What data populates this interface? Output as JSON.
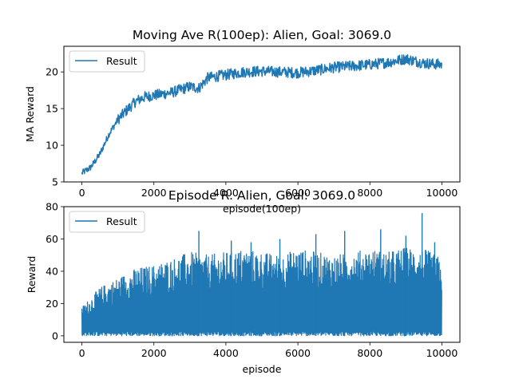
{
  "colors": {
    "series": "#1f77b4"
  },
  "chart_data": [
    {
      "type": "line",
      "title": "Moving Ave R(100ep): Alien, Goal: 3069.0",
      "xlabel": "episode(100ep)",
      "ylabel": "MA Reward",
      "xlim": [
        -500,
        10500
      ],
      "ylim": [
        5,
        23.5
      ],
      "xticks": [
        0,
        2000,
        4000,
        6000,
        8000,
        10000
      ],
      "yticks": [
        5,
        10,
        15,
        20
      ],
      "legend": "top-left",
      "grid": false,
      "series": [
        {
          "name": "Result",
          "x": [
            0,
            250,
            500,
            750,
            1000,
            1250,
            1500,
            1750,
            2000,
            2500,
            3000,
            3250,
            3500,
            3750,
            4000,
            4500,
            5000,
            5500,
            6000,
            6500,
            7000,
            7500,
            8000,
            8500,
            9000,
            9500,
            10000
          ],
          "y": [
            6.2,
            7.0,
            8.8,
            11.5,
            13.5,
            14.8,
            16.0,
            16.6,
            16.8,
            17.2,
            18.0,
            17.8,
            19.2,
            19.4,
            19.6,
            20.0,
            20.1,
            20.0,
            19.9,
            20.2,
            20.6,
            20.8,
            21.0,
            21.3,
            21.8,
            21.2,
            21.0
          ]
        }
      ]
    },
    {
      "type": "line",
      "title": "Episode R: Alien, Goal: 3069.0",
      "xlabel": "episode",
      "ylabel": "Reward",
      "xlim": [
        -500,
        10500
      ],
      "ylim": [
        -4,
        80
      ],
      "xticks": [
        0,
        2000,
        4000,
        6000,
        8000,
        10000
      ],
      "yticks": [
        0,
        20,
        40,
        60,
        80
      ],
      "legend": "top-left",
      "grid": false,
      "series": [
        {
          "name": "Result",
          "x": [
            0,
            500,
            1000,
            1500,
            2000,
            2500,
            3000,
            3500,
            4000,
            4500,
            5000,
            5500,
            6000,
            6500,
            7000,
            7500,
            8000,
            8500,
            9000,
            9500,
            10000
          ],
          "y_low": [
            0,
            0,
            0,
            0,
            0,
            0,
            0,
            0,
            0,
            0,
            0,
            0,
            0,
            0,
            0,
            0,
            0,
            0,
            0,
            0,
            0
          ],
          "y_high": [
            18,
            30,
            36,
            42,
            44,
            48,
            52,
            50,
            52,
            54,
            52,
            50,
            54,
            52,
            50,
            52,
            54,
            52,
            55,
            54,
            48
          ],
          "spikes": [
            [
              3250,
              65
            ],
            [
              4150,
              59
            ],
            [
              4700,
              58
            ],
            [
              5500,
              60
            ],
            [
              6500,
              63
            ],
            [
              7300,
              65
            ],
            [
              8300,
              66
            ],
            [
              9000,
              62
            ],
            [
              9450,
              76
            ],
            [
              9800,
              58
            ]
          ]
        }
      ]
    }
  ]
}
